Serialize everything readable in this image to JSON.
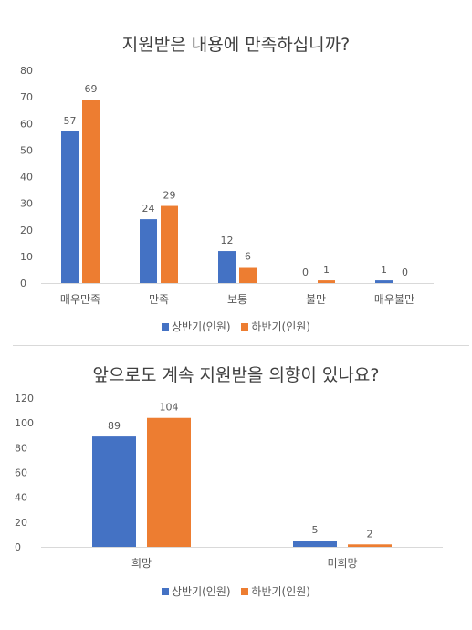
{
  "colors": {
    "series1": "#4472c4",
    "series2": "#ed7d31",
    "axis": "#d9d9d9",
    "text": "#595959"
  },
  "chart_data": [
    {
      "type": "bar",
      "title": "지원받은 내용에 만족하십니까?",
      "categories": [
        "매우만족",
        "만족",
        "보통",
        "불만",
        "매우불만"
      ],
      "series": [
        {
          "name": "상반기(인원)",
          "values": [
            57,
            24,
            12,
            0,
            1
          ]
        },
        {
          "name": "하반기(인원)",
          "values": [
            69,
            29,
            6,
            1,
            0
          ]
        }
      ],
      "ylim": [
        0,
        80
      ],
      "yticks": [
        0,
        10,
        20,
        30,
        40,
        50,
        60,
        70,
        80
      ],
      "legend": "bottom",
      "grid": false
    },
    {
      "type": "bar",
      "title": "앞으로도 계속 지원받을 의향이 있나요?",
      "categories": [
        "희망",
        "미희망"
      ],
      "series": [
        {
          "name": "상반기(인원)",
          "values": [
            89,
            5
          ]
        },
        {
          "name": "하반기(인원)",
          "values": [
            104,
            2
          ]
        }
      ],
      "ylim": [
        0,
        120
      ],
      "yticks": [
        0,
        20,
        40,
        60,
        80,
        100,
        120
      ],
      "legend": "bottom",
      "grid": false
    }
  ]
}
